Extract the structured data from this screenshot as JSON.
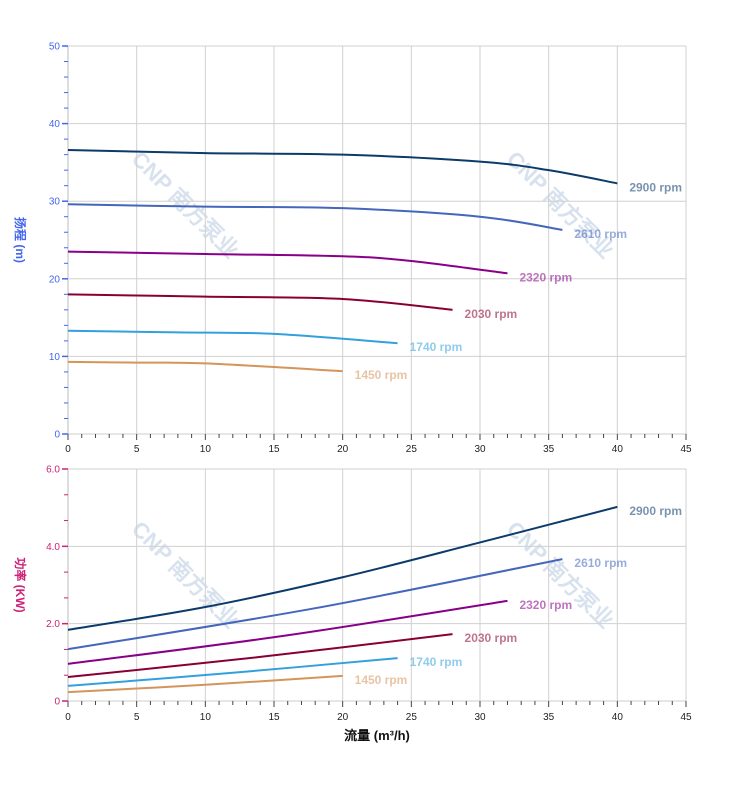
{
  "watermark": "CNP 南方泵业",
  "chart_data": [
    {
      "type": "line",
      "ylabel": "扬程 (m)",
      "xlabel": "",
      "xlim": [
        0,
        45
      ],
      "ylim": [
        0,
        50
      ],
      "xticks": [
        0,
        5,
        10,
        15,
        20,
        25,
        30,
        35,
        40,
        45
      ],
      "yticks": [
        0,
        10,
        20,
        30,
        40,
        50
      ],
      "grid": true,
      "axis_color": "#4466ee",
      "series": [
        {
          "name": "2900 rpm",
          "color": "#0b3a6b",
          "x": [
            0,
            10,
            20,
            30,
            35,
            40
          ],
          "y": [
            36.6,
            36.2,
            36.0,
            35.1,
            34.0,
            32.3
          ]
        },
        {
          "name": "2610 rpm",
          "color": "#4466bb",
          "x": [
            0,
            10,
            20,
            30,
            36
          ],
          "y": [
            29.6,
            29.3,
            29.1,
            28.0,
            26.3
          ]
        },
        {
          "name": "2320 rpm",
          "color": "#880088",
          "x": [
            0,
            10,
            20,
            25,
            32
          ],
          "y": [
            23.5,
            23.2,
            22.9,
            22.3,
            20.7
          ]
        },
        {
          "name": "2030 rpm",
          "color": "#880033",
          "x": [
            0,
            10,
            20,
            28
          ],
          "y": [
            18.0,
            17.7,
            17.4,
            16.0
          ]
        },
        {
          "name": "1740 rpm",
          "color": "#33a0dd",
          "x": [
            0,
            8,
            15,
            24
          ],
          "y": [
            13.3,
            13.1,
            12.9,
            11.7
          ]
        },
        {
          "name": "1450 rpm",
          "color": "#d4945a",
          "x": [
            0,
            5,
            10,
            20
          ],
          "y": [
            9.3,
            9.2,
            9.1,
            8.1
          ]
        }
      ]
    },
    {
      "type": "line",
      "ylabel": "功率 (KW)",
      "xlabel": "流量 (m³/h)",
      "xlim": [
        0,
        45
      ],
      "ylim": [
        0,
        6
      ],
      "xticks": [
        0,
        5,
        10,
        15,
        20,
        25,
        30,
        35,
        40,
        45
      ],
      "yticks": [
        "0",
        "2.0",
        "4.0",
        "6.0"
      ],
      "grid": true,
      "axis_color": "#cc2277",
      "series": [
        {
          "name": "2900 rpm",
          "color": "#0b3a6b",
          "x": [
            0,
            10,
            20,
            30,
            40
          ],
          "y": [
            1.84,
            2.43,
            3.2,
            4.1,
            5.02
          ]
        },
        {
          "name": "2610 rpm",
          "color": "#4466bb",
          "x": [
            0,
            18,
            36
          ],
          "y": [
            1.34,
            2.4,
            3.67
          ]
        },
        {
          "name": "2320 rpm",
          "color": "#880088",
          "x": [
            0,
            16,
            32
          ],
          "y": [
            0.96,
            1.7,
            2.59
          ]
        },
        {
          "name": "2030 rpm",
          "color": "#880033",
          "x": [
            0,
            14,
            28
          ],
          "y": [
            0.62,
            1.14,
            1.73
          ]
        },
        {
          "name": "1740 rpm",
          "color": "#33a0dd",
          "x": [
            0,
            12,
            24
          ],
          "y": [
            0.39,
            0.73,
            1.11
          ]
        },
        {
          "name": "1450 rpm",
          "color": "#d4945a",
          "x": [
            0,
            10,
            20
          ],
          "y": [
            0.23,
            0.42,
            0.65
          ]
        }
      ]
    }
  ]
}
